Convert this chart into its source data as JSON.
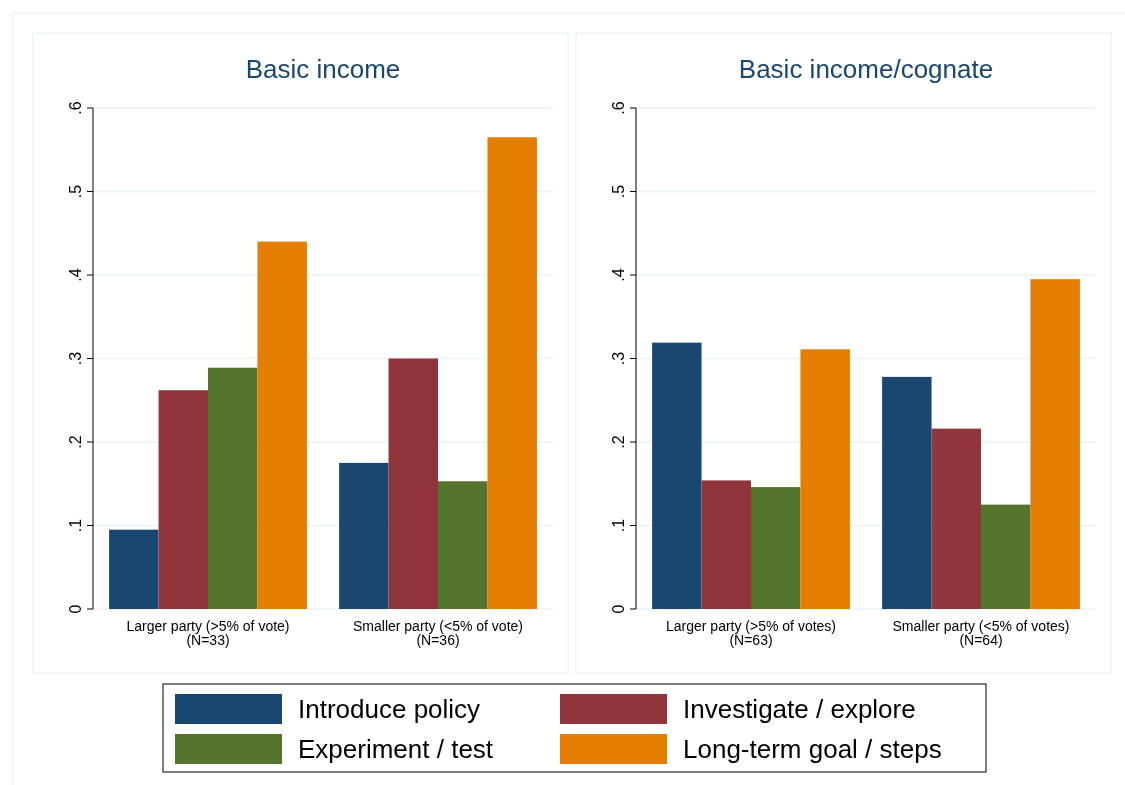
{
  "chart_data": [
    {
      "type": "bar",
      "title": "Basic income",
      "categories": [
        "Larger party (>5% of vote)\n(N=33)",
        "Smaller party (<5% of vote)\n(N=36)"
      ],
      "series": [
        {
          "name": "Introduce policy",
          "color": "#1a476f",
          "values": [
            0.095,
            0.175
          ]
        },
        {
          "name": "Investigate / explore",
          "color": "#90353b",
          "values": [
            0.262,
            0.3
          ]
        },
        {
          "name": "Experiment / test",
          "color": "#55752f",
          "values": [
            0.289,
            0.153
          ]
        },
        {
          "name": "Long-term goal / steps",
          "color": "#e37e00",
          "values": [
            0.44,
            0.565
          ]
        }
      ],
      "ylim": [
        0,
        0.6
      ],
      "yticks": [
        0,
        {
          "value": 0.1,
          "label": ".1"
        },
        {
          "value": 0.2,
          "label": ".2"
        },
        {
          "value": 0.3,
          "label": ".3"
        },
        {
          "value": 0.4,
          "label": ".4"
        },
        {
          "value": 0.5,
          "label": ".5"
        },
        {
          "value": 0.6,
          "label": ".6"
        }
      ],
      "grid": "y",
      "legend": "bottom"
    },
    {
      "type": "bar",
      "title": "Basic income/cognate",
      "categories": [
        "Larger party (>5% of votes)\n(N=63)",
        "Smaller party (<5% of votes)\n(N=64)"
      ],
      "series": [
        {
          "color": "#1a476f",
          "values": [
            0.319,
            0.278
          ]
        },
        {
          "color": "#90353b",
          "values": [
            0.154,
            0.216
          ]
        },
        {
          "color": "#55752f",
          "values": [
            0.146,
            0.125
          ]
        },
        {
          "color": "#e37e00",
          "values": [
            0.311,
            0.395
          ]
        }
      ],
      "ylim": [
        0,
        0.6
      ],
      "yticks": [
        0,
        {
          "value": 0.1,
          "label": ".1"
        },
        {
          "value": 0.2,
          "label": ".2"
        },
        {
          "value": 0.3,
          "label": ".3"
        },
        {
          "value": 0.4,
          "label": ".4"
        },
        {
          "value": 0.5,
          "label": ".5"
        },
        {
          "value": 0.6,
          "label": ".6"
        }
      ],
      "grid": "y"
    }
  ]
}
